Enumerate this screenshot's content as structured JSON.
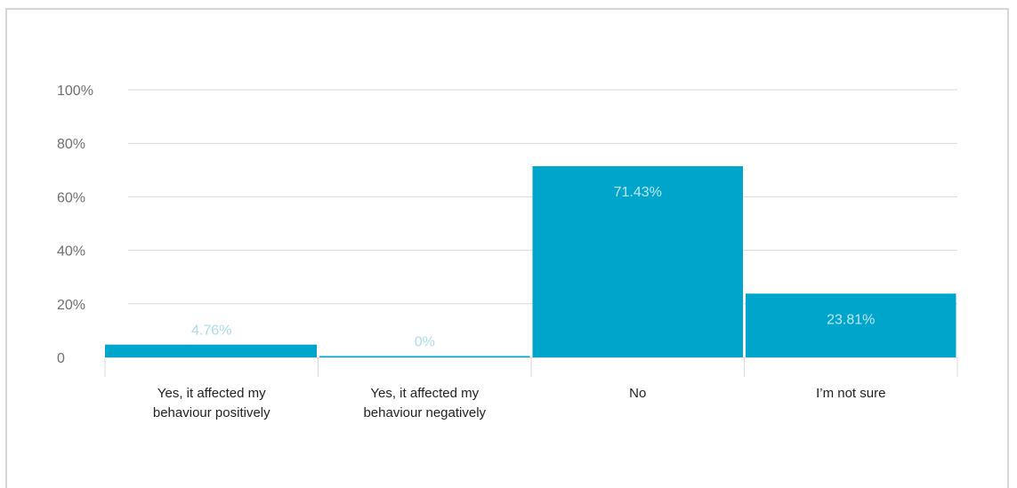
{
  "chart_data": {
    "type": "bar",
    "categories": [
      [
        "Yes, it affected my",
        "behaviour positively"
      ],
      [
        "Yes, it affected my",
        "behaviour negatively"
      ],
      [
        "No"
      ],
      [
        "I’m not sure"
      ]
    ],
    "values": [
      4.76,
      0,
      71.43,
      23.81
    ],
    "data_labels": [
      "4.76%",
      "0%",
      "71.43%",
      "23.81%"
    ],
    "yticks": [
      {
        "value": 0,
        "label": "0"
      },
      {
        "value": 20,
        "label": "20%"
      },
      {
        "value": 40,
        "label": "40%"
      },
      {
        "value": 60,
        "label": "60%"
      },
      {
        "value": 80,
        "label": "80%"
      },
      {
        "value": 100,
        "label": "100%"
      }
    ],
    "ylim": [
      0,
      100
    ],
    "grid": true,
    "colors": {
      "bar": "#00a5cc",
      "label_inside": "#bfe6f1",
      "label_outside": "#aadcec",
      "grid": "#d9d9d9"
    }
  }
}
